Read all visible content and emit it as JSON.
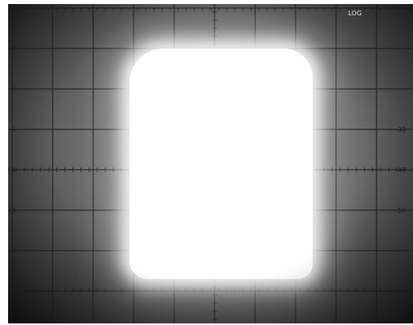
{
  "photo": {
    "subject": "oscilloscope-screen",
    "colors": {
      "trace": "#ffffff",
      "screen": "#7a7a7a",
      "border": "#111111"
    }
  },
  "graticule": {
    "left_labels": [
      "7",
      "6",
      "5",
      "4",
      "3",
      "2"
    ],
    "right_labels": [
      "-30",
      "-40",
      "-50"
    ],
    "top_right_label": "LOG"
  }
}
